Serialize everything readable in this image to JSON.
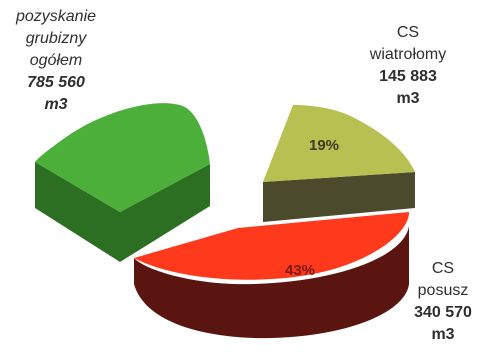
{
  "chart_data": {
    "type": "pie",
    "style": "3d-exploded",
    "slices": [
      {
        "key": "total",
        "name_lines": [
          "pozyskanie",
          "grubizny",
          "ogółem"
        ],
        "value_label": "785 560",
        "unit": "m3",
        "value": 785560,
        "percent_label": "",
        "color": "#4caf3a",
        "side_color": "#2d6f22"
      },
      {
        "key": "wind",
        "name_lines": [
          "CS",
          "wiatrołomy"
        ],
        "value_label": "145 883",
        "unit": "m3",
        "value": 145883,
        "percent_label": "19%",
        "color": "#b7c152",
        "side_color": "#4b4a2c"
      },
      {
        "key": "drought",
        "name_lines": [
          "CS",
          "posusz"
        ],
        "value_label": "340 570",
        "unit": "m3",
        "value": 340570,
        "percent_label": "43%",
        "color": "#ff3a1c",
        "side_color": "#5a1510"
      }
    ]
  }
}
